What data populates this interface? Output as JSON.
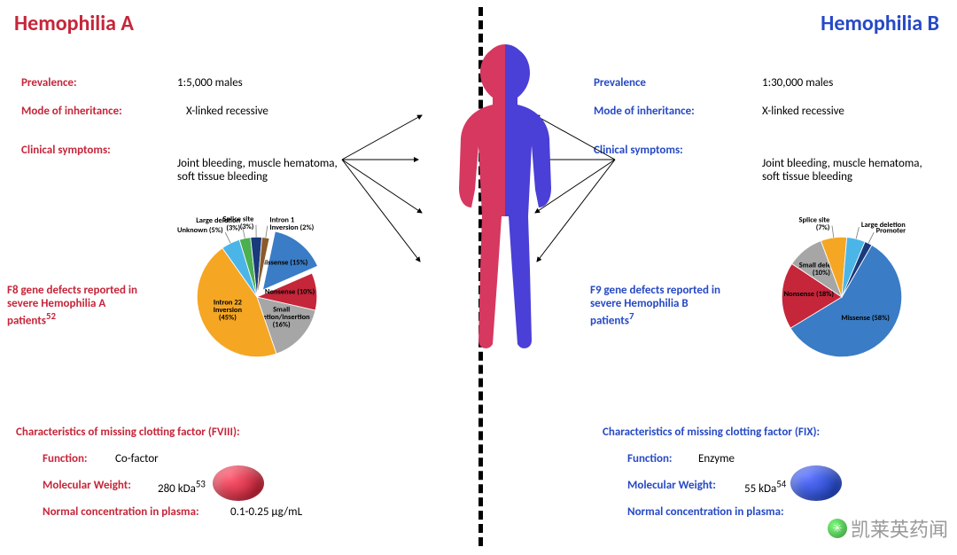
{
  "left": {
    "title": "Hemophilia A",
    "title_color": "#c5263a",
    "rows": [
      {
        "label": "Prevalence:",
        "value": "1:5,000 males"
      },
      {
        "label": "Mode of inheritance:",
        "value": "X-linked recessive"
      },
      {
        "label": "Clinical symptoms:",
        "value": "Joint bleeding, muscle hematoma,\nsoft tissue bleeding"
      }
    ],
    "pie_caption": "F8 gene defects reported in severe Hemophilia A patients",
    "pie_caption_sup": "52",
    "pie_slices": [
      {
        "name": "Missense (15%)",
        "pct": 15,
        "color": "#3a7cc5"
      },
      {
        "name": "Nonsense (10%)",
        "pct": 10,
        "color": "#c5263a"
      },
      {
        "name": "Small deletion/insertion (16%)",
        "pct": 16,
        "color": "#a6a6a6"
      },
      {
        "name": "Intron 22 Inversion (45%)",
        "pct": 45,
        "color": "#f5a623"
      },
      {
        "name": "Unknown (5%)",
        "pct": 5,
        "color": "#4bb5e8"
      },
      {
        "name": "Large deletion (3%)",
        "pct": 3,
        "color": "#4caf50"
      },
      {
        "name": "Splice site (3%)",
        "pct": 3,
        "color": "#1a3a7c"
      },
      {
        "name": "Intron 1 Inversion (2%)",
        "pct": 2,
        "color": "#8b5a2b"
      }
    ],
    "char_title": "Characteristics of missing clotting factor (FVIII):",
    "char_rows": [
      {
        "label": "Function:",
        "value": "Co-factor"
      },
      {
        "label": "Molecular Weight:",
        "value": "280 kDa",
        "sup": "53"
      },
      {
        "label": "Normal concentration in plasma:",
        "value": "0.1-0.25 µg/mL"
      }
    ],
    "body_color": "#d63860"
  },
  "right": {
    "title": "Hemophilia B",
    "title_color": "#2649c5",
    "rows": [
      {
        "label": "Prevalence",
        "value": "1:30,000 males"
      },
      {
        "label": "Mode of inheritance:",
        "value": "X-linked recessive"
      },
      {
        "label": "Clinical symptoms:",
        "value": "Joint bleeding, muscle hematoma,\nsoft tissue bleeding"
      }
    ],
    "pie_caption": "F9 gene defects reported in severe Hemophilia B patients",
    "pie_caption_sup": "7",
    "pie_slices": [
      {
        "name": "Missense (58%)",
        "pct": 58,
        "color": "#3a7cc5"
      },
      {
        "name": "Nonsense (18%)",
        "pct": 18,
        "color": "#c5263a"
      },
      {
        "name": "Small deletion (10%)",
        "pct": 10,
        "color": "#a6a6a6"
      },
      {
        "name": "Splice site (7%)",
        "pct": 7,
        "color": "#f5a623"
      },
      {
        "name": "Large deletion",
        "pct": 5,
        "color": "#4bb5e8"
      },
      {
        "name": "Promoter",
        "pct": 2,
        "color": "#1a3a7c"
      }
    ],
    "char_title": "Characteristics of missing clotting factor (FIX):",
    "char_rows": [
      {
        "label": "Function:",
        "value": "Enzyme"
      },
      {
        "label": "Molecular Weight:",
        "value": "55 kDa",
        "sup": "54"
      },
      {
        "label": "Normal concentration in plasma:",
        "value": ""
      }
    ],
    "body_color": "#4a3fd6"
  },
  "watermark": "凯莱英药闻",
  "background_color": "#ffffff",
  "font_family": "Calibri, Arial, sans-serif"
}
